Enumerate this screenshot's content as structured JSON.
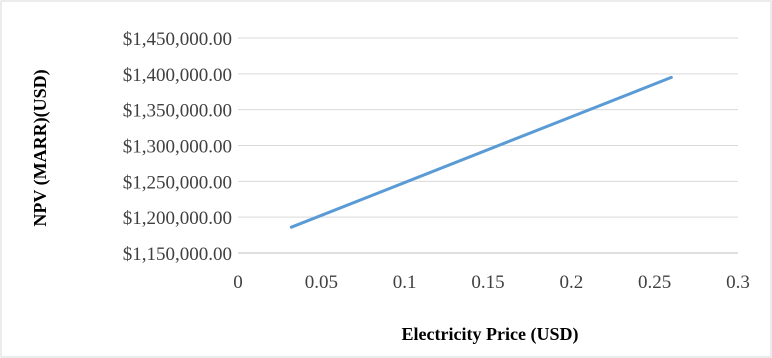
{
  "chart_data": {
    "type": "line",
    "title": "",
    "xlabel": "Electricity Price (USD)",
    "ylabel": "NPV (MARR)(USD)",
    "xlim": [
      0,
      0.3
    ],
    "ylim": [
      1150000,
      1450000
    ],
    "x_ticks": [
      "0",
      "0.05",
      "0.1",
      "0.15",
      "0.2",
      "0.25",
      "0.3"
    ],
    "x_tick_values": [
      0,
      0.05,
      0.1,
      0.15,
      0.2,
      0.25,
      0.3
    ],
    "y_ticks": [
      "$1,150,000.00",
      "$1,200,000.00",
      "$1,250,000.00",
      "$1,300,000.00",
      "$1,350,000.00",
      "$1,400,000.00",
      "$1,450,000.00"
    ],
    "y_tick_values": [
      1150000,
      1200000,
      1250000,
      1300000,
      1350000,
      1400000,
      1450000
    ],
    "grid": {
      "horizontal": true,
      "vertical": false
    },
    "legend": "none",
    "series": [
      {
        "color": "#5B9BD5",
        "x": [
          0.032,
          0.26
        ],
        "y": [
          1186000,
          1395000
        ]
      }
    ]
  }
}
